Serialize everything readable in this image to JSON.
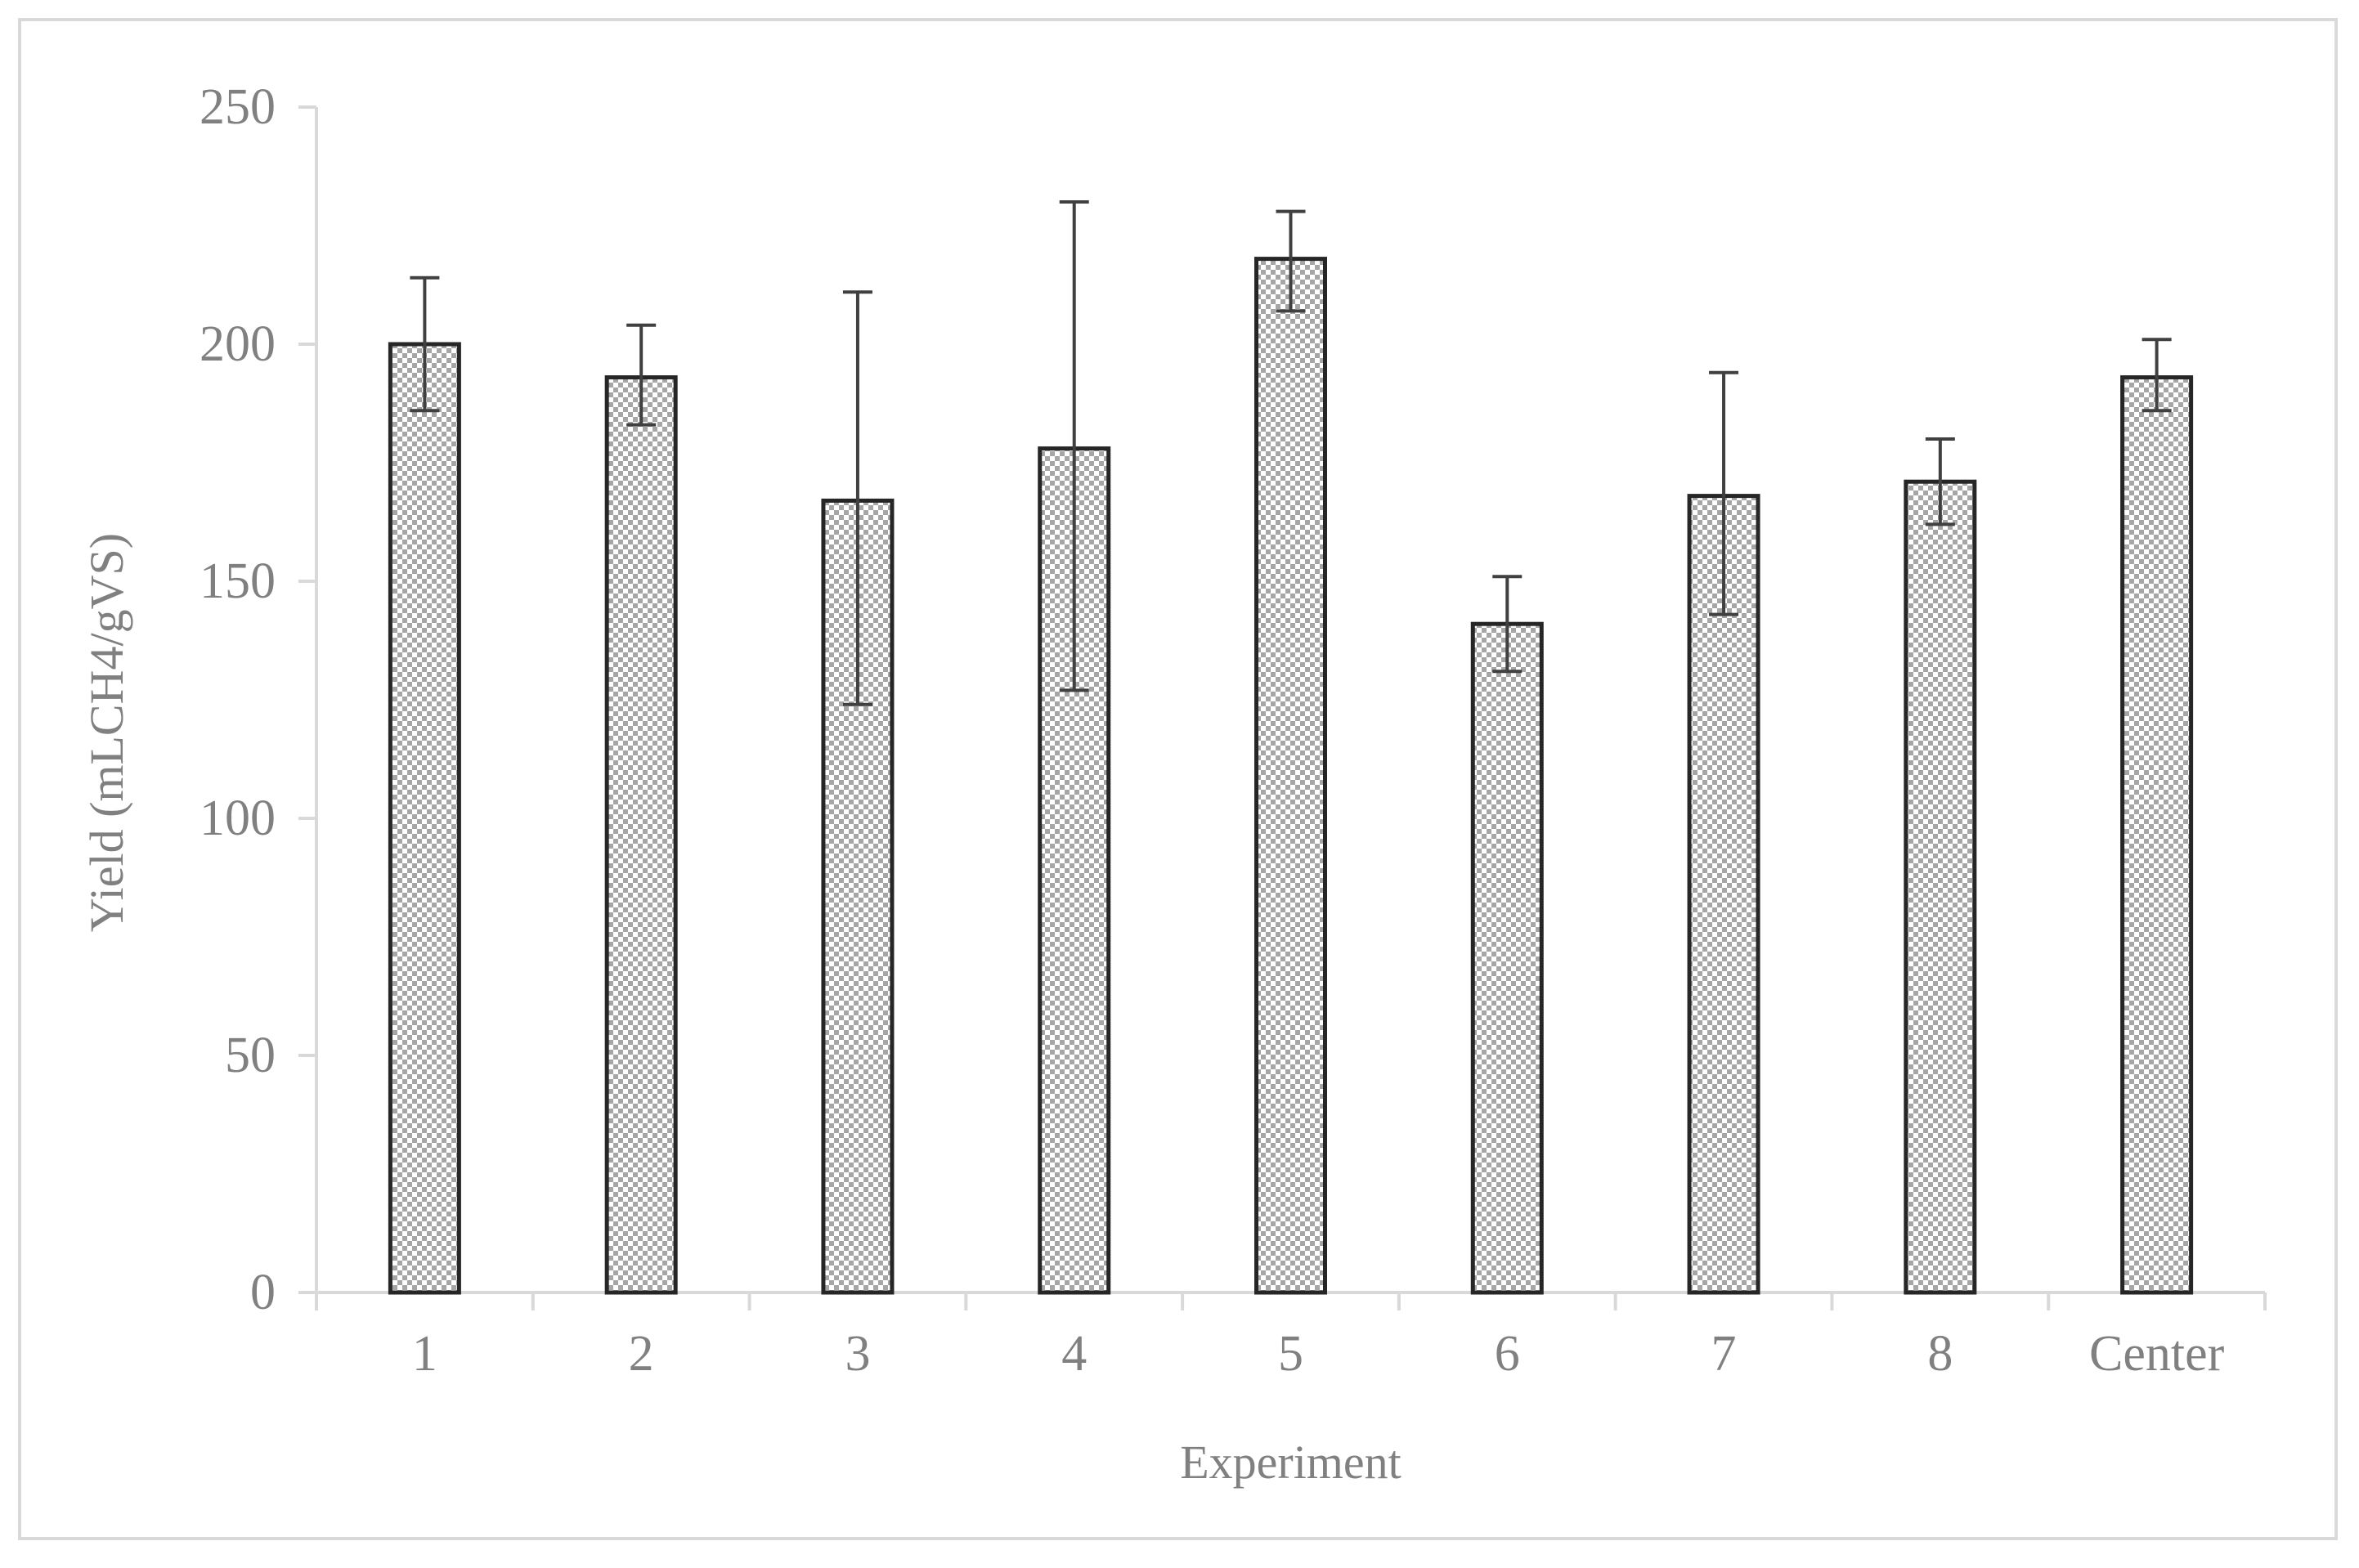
{
  "chart_data": {
    "type": "bar",
    "title": "",
    "xlabel": "Experiment",
    "ylabel": "Yield (mLCH4/gVS)",
    "categories": [
      "1",
      "2",
      "3",
      "4",
      "5",
      "6",
      "7",
      "8",
      "Center"
    ],
    "values": [
      200,
      193,
      167,
      178,
      218,
      141,
      168,
      171,
      193
    ],
    "error_upper": [
      214,
      204,
      211,
      230,
      228,
      151,
      194,
      180,
      201
    ],
    "error_lower": [
      186,
      183,
      124,
      127,
      207,
      131,
      143,
      162,
      186
    ],
    "ylim": [
      0,
      250
    ],
    "yticks": [
      "0",
      "50",
      "100",
      "150",
      "200",
      "250"
    ],
    "grid": false,
    "legend": "none",
    "bar_fill": "checkered",
    "colors": {
      "bar_outline": "#262626",
      "bar_check_dark": "#a6a6a6",
      "bar_check_light": "#ffffff",
      "error_bar": "#404040",
      "axis": "#d9d9d9",
      "text": "#808080"
    }
  }
}
